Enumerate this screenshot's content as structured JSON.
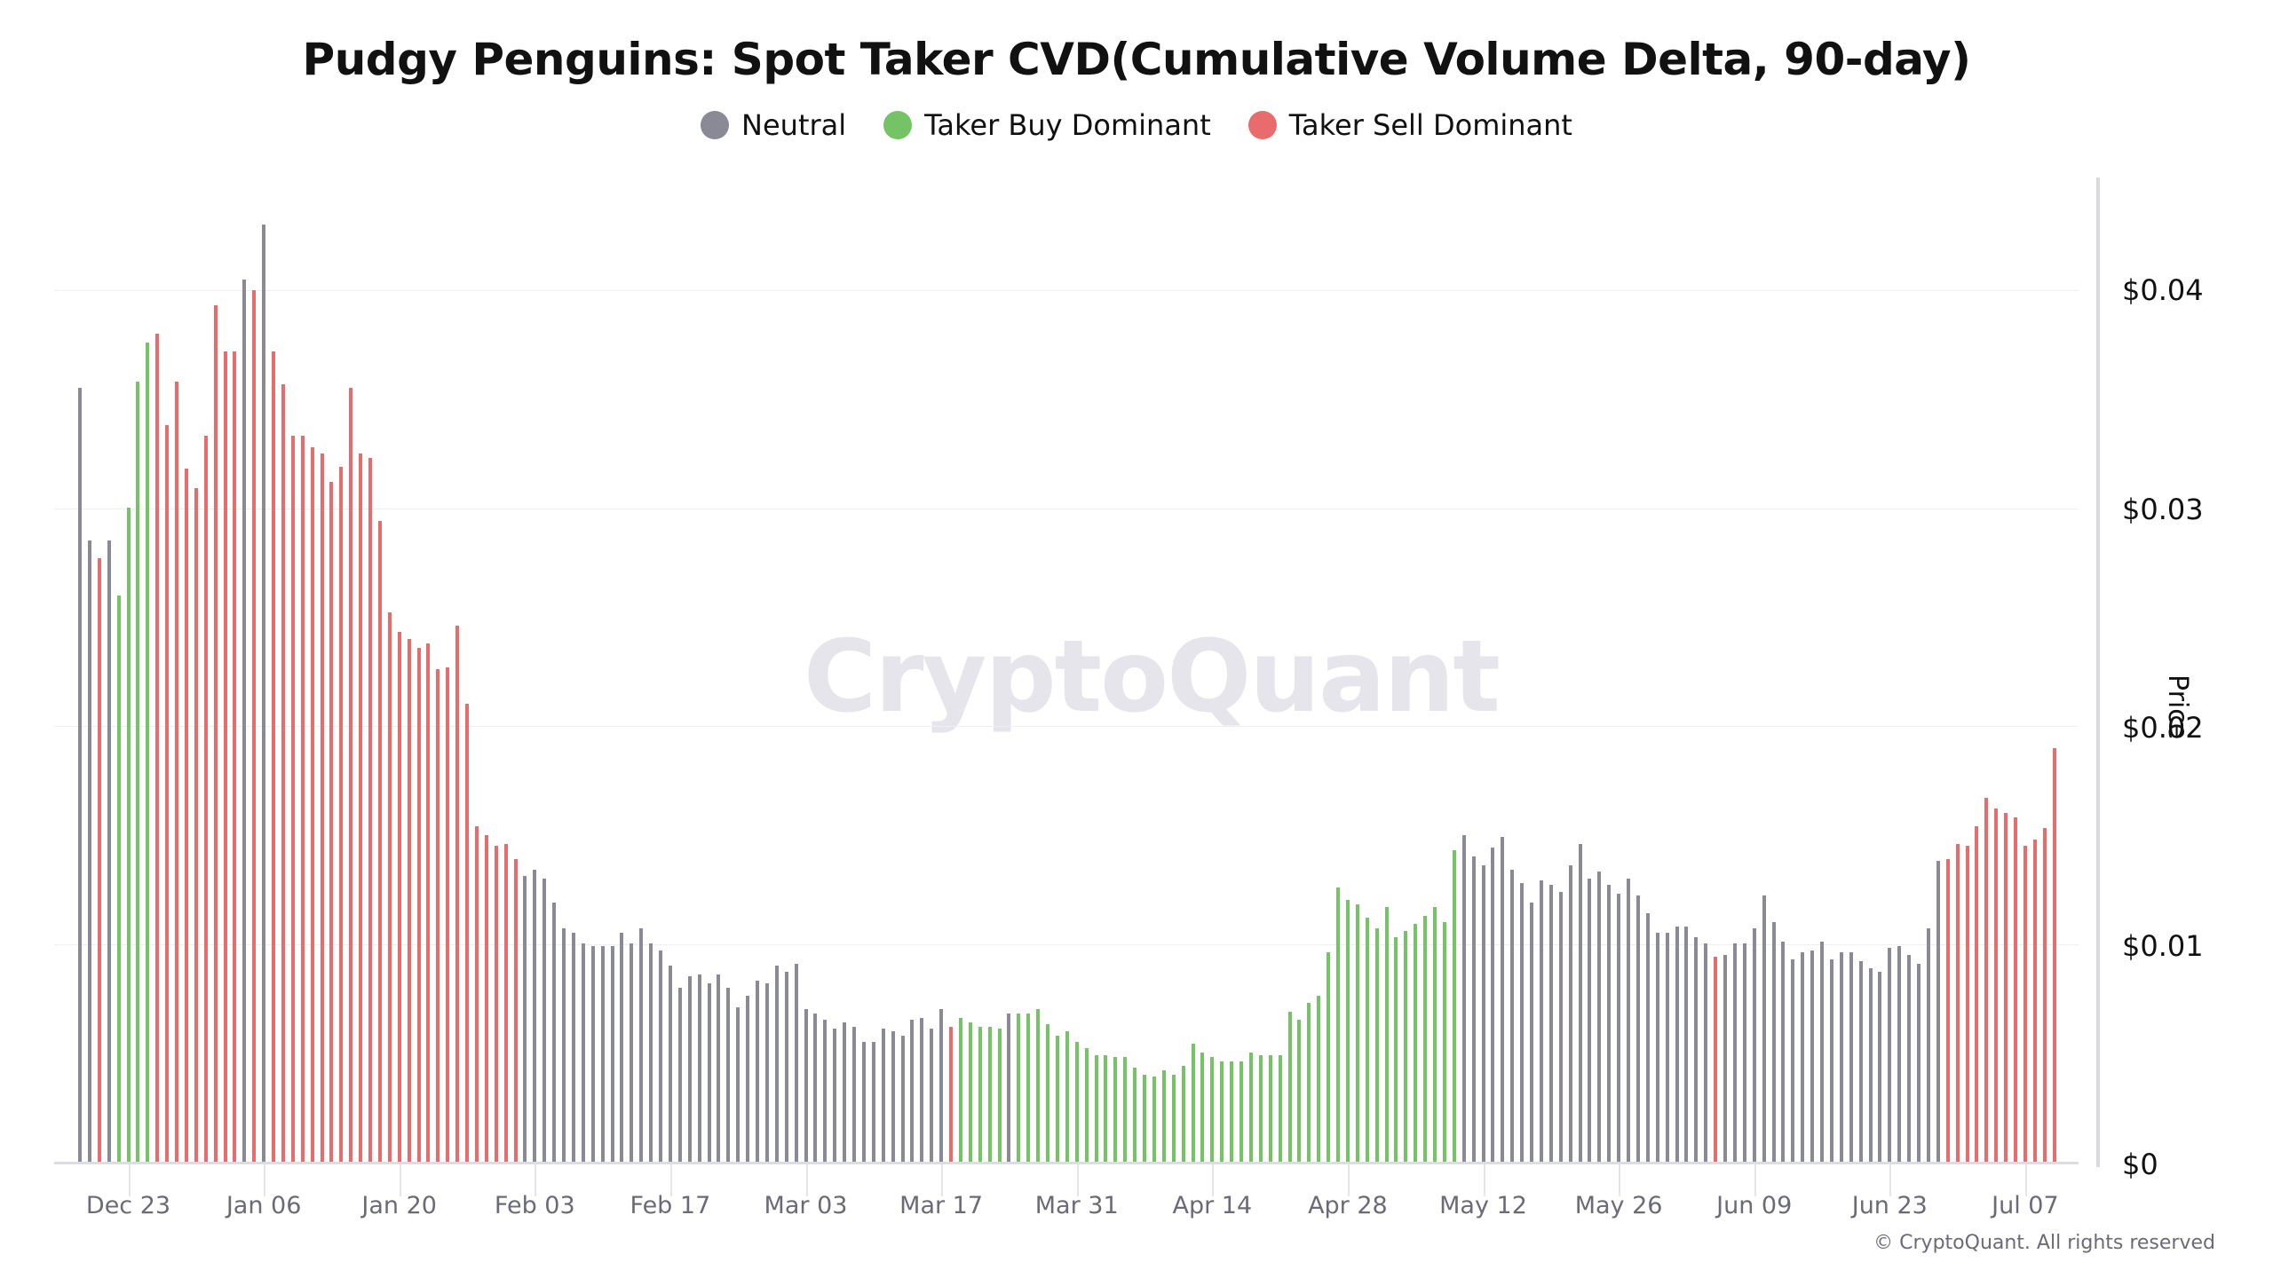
{
  "title": "Pudgy Penguins: Spot Taker CVD(Cumulative Volume Delta, 90-day)",
  "legend": [
    {
      "label": "Neutral",
      "color": "#8a8a96"
    },
    {
      "label": "Taker Buy Dominant",
      "color": "#74c365"
    },
    {
      "label": "Taker Sell Dominant",
      "color": "#e86c6c"
    }
  ],
  "watermark": "CryptoQuant",
  "copyright": "© CryptoQuant. All rights reserved",
  "y_axis": {
    "label": "Price",
    "ticks": [
      "$0",
      "$0.01",
      "$0.02",
      "$0.03",
      "$0.04"
    ]
  },
  "x_axis": {
    "ticks": [
      "Dec 23",
      "Jan 06",
      "Jan 20",
      "Feb 03",
      "Feb 17",
      "Mar 03",
      "Mar 17",
      "Mar 31",
      "Apr 14",
      "Apr 28",
      "May 12",
      "May 26",
      "Jun 09",
      "Jun 23",
      "Jul 07"
    ]
  },
  "chart_data": {
    "type": "bar",
    "title": "Pudgy Penguins: Spot Taker CVD(Cumulative Volume Delta, 90-day)",
    "xlabel": "",
    "ylabel": "Price",
    "ylim": [
      0,
      0.045
    ],
    "y_ticks": [
      0,
      0.01,
      0.02,
      0.03,
      0.04
    ],
    "x_ticks": [
      "Dec 23",
      "Jan 06",
      "Jan 20",
      "Feb 03",
      "Feb 17",
      "Mar 03",
      "Mar 17",
      "Mar 31",
      "Apr 14",
      "Apr 28",
      "May 12",
      "May 26",
      "Jun 09",
      "Jun 23",
      "Jul 07"
    ],
    "grid": true,
    "legend_position": "top",
    "color_key": {
      "n": "Neutral",
      "b": "Taker Buy Dominant",
      "s": "Taker Sell Dominant"
    },
    "start_date": "Dec 18",
    "bars": [
      [
        0.0355,
        "n"
      ],
      [
        0.0285,
        "n"
      ],
      [
        0.0277,
        "s"
      ],
      [
        0.0285,
        "n"
      ],
      [
        0.026,
        "b"
      ],
      [
        0.03,
        "b"
      ],
      [
        0.0358,
        "b"
      ],
      [
        0.0376,
        "b"
      ],
      [
        0.038,
        "s"
      ],
      [
        0.0338,
        "s"
      ],
      [
        0.0358,
        "s"
      ],
      [
        0.0318,
        "s"
      ],
      [
        0.0309,
        "s"
      ],
      [
        0.0333,
        "s"
      ],
      [
        0.0393,
        "s"
      ],
      [
        0.0372,
        "s"
      ],
      [
        0.0372,
        "s"
      ],
      [
        0.0405,
        "n"
      ],
      [
        0.04,
        "s"
      ],
      [
        0.043,
        "n"
      ],
      [
        0.0372,
        "s"
      ],
      [
        0.0357,
        "s"
      ],
      [
        0.0333,
        "s"
      ],
      [
        0.0333,
        "s"
      ],
      [
        0.0328,
        "s"
      ],
      [
        0.0325,
        "s"
      ],
      [
        0.0312,
        "s"
      ],
      [
        0.0319,
        "s"
      ],
      [
        0.0355,
        "s"
      ],
      [
        0.0325,
        "s"
      ],
      [
        0.0323,
        "s"
      ],
      [
        0.0294,
        "s"
      ],
      [
        0.0252,
        "s"
      ],
      [
        0.0243,
        "s"
      ],
      [
        0.024,
        "s"
      ],
      [
        0.0236,
        "s"
      ],
      [
        0.0238,
        "s"
      ],
      [
        0.0226,
        "s"
      ],
      [
        0.0227,
        "s"
      ],
      [
        0.0246,
        "s"
      ],
      [
        0.021,
        "s"
      ],
      [
        0.0154,
        "s"
      ],
      [
        0.015,
        "s"
      ],
      [
        0.0145,
        "s"
      ],
      [
        0.0146,
        "s"
      ],
      [
        0.0139,
        "s"
      ],
      [
        0.0131,
        "n"
      ],
      [
        0.0134,
        "n"
      ],
      [
        0.013,
        "n"
      ],
      [
        0.0119,
        "n"
      ],
      [
        0.0107,
        "n"
      ],
      [
        0.0105,
        "n"
      ],
      [
        0.01,
        "n"
      ],
      [
        0.0099,
        "n"
      ],
      [
        0.0099,
        "n"
      ],
      [
        0.0099,
        "n"
      ],
      [
        0.0105,
        "n"
      ],
      [
        0.01,
        "n"
      ],
      [
        0.0107,
        "n"
      ],
      [
        0.01,
        "n"
      ],
      [
        0.0097,
        "n"
      ],
      [
        0.009,
        "n"
      ],
      [
        0.008,
        "n"
      ],
      [
        0.0085,
        "n"
      ],
      [
        0.0086,
        "n"
      ],
      [
        0.0082,
        "n"
      ],
      [
        0.0086,
        "n"
      ],
      [
        0.008,
        "n"
      ],
      [
        0.0071,
        "n"
      ],
      [
        0.0076,
        "n"
      ],
      [
        0.0083,
        "n"
      ],
      [
        0.0082,
        "n"
      ],
      [
        0.009,
        "n"
      ],
      [
        0.0087,
        "n"
      ],
      [
        0.0091,
        "n"
      ],
      [
        0.007,
        "n"
      ],
      [
        0.0068,
        "n"
      ],
      [
        0.0065,
        "n"
      ],
      [
        0.0061,
        "n"
      ],
      [
        0.0064,
        "n"
      ],
      [
        0.0062,
        "n"
      ],
      [
        0.0055,
        "n"
      ],
      [
        0.0055,
        "n"
      ],
      [
        0.0061,
        "n"
      ],
      [
        0.006,
        "n"
      ],
      [
        0.0058,
        "n"
      ],
      [
        0.0065,
        "n"
      ],
      [
        0.0066,
        "n"
      ],
      [
        0.0061,
        "n"
      ],
      [
        0.007,
        "n"
      ],
      [
        0.0062,
        "s"
      ],
      [
        0.0066,
        "b"
      ],
      [
        0.0064,
        "b"
      ],
      [
        0.0062,
        "b"
      ],
      [
        0.0062,
        "b"
      ],
      [
        0.0061,
        "b"
      ],
      [
        0.0068,
        "n"
      ],
      [
        0.0068,
        "b"
      ],
      [
        0.0068,
        "b"
      ],
      [
        0.007,
        "b"
      ],
      [
        0.0063,
        "b"
      ],
      [
        0.0058,
        "b"
      ],
      [
        0.006,
        "b"
      ],
      [
        0.0055,
        "b"
      ],
      [
        0.0052,
        "b"
      ],
      [
        0.0049,
        "b"
      ],
      [
        0.0049,
        "b"
      ],
      [
        0.0048,
        "b"
      ],
      [
        0.0048,
        "b"
      ],
      [
        0.0043,
        "b"
      ],
      [
        0.004,
        "b"
      ],
      [
        0.0039,
        "b"
      ],
      [
        0.0042,
        "b"
      ],
      [
        0.004,
        "b"
      ],
      [
        0.0044,
        "b"
      ],
      [
        0.0054,
        "b"
      ],
      [
        0.005,
        "b"
      ],
      [
        0.0048,
        "b"
      ],
      [
        0.0046,
        "b"
      ],
      [
        0.0046,
        "b"
      ],
      [
        0.0046,
        "b"
      ],
      [
        0.005,
        "b"
      ],
      [
        0.0049,
        "b"
      ],
      [
        0.0049,
        "b"
      ],
      [
        0.0049,
        "b"
      ],
      [
        0.0069,
        "b"
      ],
      [
        0.0065,
        "b"
      ],
      [
        0.0073,
        "b"
      ],
      [
        0.0076,
        "b"
      ],
      [
        0.0096,
        "b"
      ],
      [
        0.0126,
        "b"
      ],
      [
        0.012,
        "b"
      ],
      [
        0.0118,
        "b"
      ],
      [
        0.0112,
        "b"
      ],
      [
        0.0107,
        "b"
      ],
      [
        0.0117,
        "b"
      ],
      [
        0.0103,
        "b"
      ],
      [
        0.0106,
        "b"
      ],
      [
        0.0109,
        "b"
      ],
      [
        0.0113,
        "b"
      ],
      [
        0.0117,
        "b"
      ],
      [
        0.011,
        "b"
      ],
      [
        0.0143,
        "b"
      ],
      [
        0.015,
        "n"
      ],
      [
        0.014,
        "n"
      ],
      [
        0.0136,
        "n"
      ],
      [
        0.0144,
        "n"
      ],
      [
        0.0149,
        "n"
      ],
      [
        0.0134,
        "n"
      ],
      [
        0.0128,
        "n"
      ],
      [
        0.0119,
        "n"
      ],
      [
        0.0129,
        "n"
      ],
      [
        0.0127,
        "n"
      ],
      [
        0.0124,
        "n"
      ],
      [
        0.0136,
        "n"
      ],
      [
        0.0146,
        "n"
      ],
      [
        0.013,
        "n"
      ],
      [
        0.0133,
        "n"
      ],
      [
        0.0127,
        "n"
      ],
      [
        0.0123,
        "n"
      ],
      [
        0.013,
        "n"
      ],
      [
        0.0122,
        "n"
      ],
      [
        0.0114,
        "n"
      ],
      [
        0.0105,
        "n"
      ],
      [
        0.0105,
        "n"
      ],
      [
        0.0108,
        "n"
      ],
      [
        0.0108,
        "n"
      ],
      [
        0.0103,
        "n"
      ],
      [
        0.01,
        "n"
      ],
      [
        0.0094,
        "s"
      ],
      [
        0.0095,
        "n"
      ],
      [
        0.01,
        "n"
      ],
      [
        0.01,
        "n"
      ],
      [
        0.0107,
        "n"
      ],
      [
        0.0122,
        "n"
      ],
      [
        0.011,
        "n"
      ],
      [
        0.0101,
        "n"
      ],
      [
        0.0093,
        "n"
      ],
      [
        0.0096,
        "n"
      ],
      [
        0.0097,
        "n"
      ],
      [
        0.0101,
        "n"
      ],
      [
        0.0093,
        "n"
      ],
      [
        0.0096,
        "n"
      ],
      [
        0.0096,
        "n"
      ],
      [
        0.0092,
        "n"
      ],
      [
        0.0089,
        "n"
      ],
      [
        0.0087,
        "n"
      ],
      [
        0.0098,
        "n"
      ],
      [
        0.0099,
        "n"
      ],
      [
        0.0095,
        "n"
      ],
      [
        0.0091,
        "n"
      ],
      [
        0.0107,
        "n"
      ],
      [
        0.0138,
        "n"
      ],
      [
        0.0139,
        "s"
      ],
      [
        0.0146,
        "s"
      ],
      [
        0.0145,
        "s"
      ],
      [
        0.0154,
        "s"
      ],
      [
        0.0167,
        "s"
      ],
      [
        0.0162,
        "s"
      ],
      [
        0.016,
        "s"
      ],
      [
        0.0158,
        "s"
      ],
      [
        0.0145,
        "s"
      ],
      [
        0.0148,
        "s"
      ],
      [
        0.0153,
        "s"
      ],
      [
        0.019,
        "s"
      ]
    ]
  }
}
